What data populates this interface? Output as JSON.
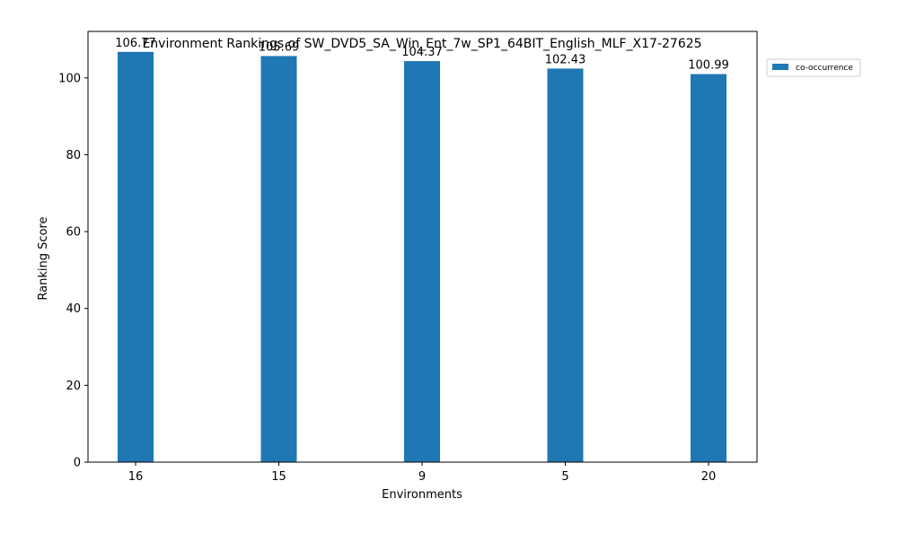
{
  "chart_data": {
    "type": "bar",
    "title": "Environment Rankings of SW_DVD5_SA_Win_Ent_7w_SP1_64BIT_English_MLF_X17-27625",
    "xlabel": "Environments",
    "ylabel": "Ranking Score",
    "categories": [
      "16",
      "15",
      "9",
      "5",
      "20"
    ],
    "series": [
      {
        "name": "co-occurrence",
        "values": [
          106.77,
          105.69,
          104.37,
          102.43,
          100.99
        ],
        "color": "#1f77b4"
      }
    ],
    "data_labels": [
      "106.77",
      "105.69",
      "104.37",
      "102.43",
      "100.99"
    ],
    "ylim": [
      0,
      112.1
    ],
    "yticks": [
      0,
      20,
      40,
      60,
      80,
      100
    ],
    "grid": false,
    "legend_position": "outside-top-right"
  }
}
